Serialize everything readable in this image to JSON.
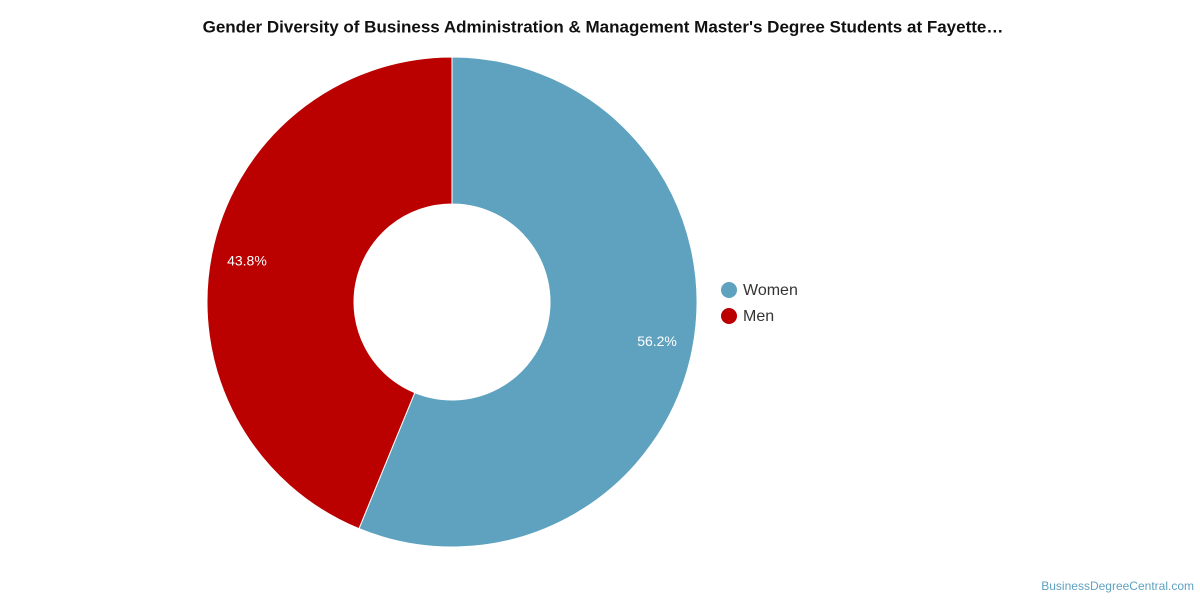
{
  "chart_data": {
    "type": "donut",
    "title": "Gender Diversity of Business Administration & Management Master's Degree Students at Fayette…",
    "categories": [
      "Women",
      "Men"
    ],
    "values": [
      56.2,
      43.8
    ],
    "value_labels": [
      "56.2%",
      "43.8%"
    ],
    "colors": [
      "#5ea2bf",
      "#bb0000"
    ],
    "credit": "BusinessDegreeCentral.com"
  }
}
